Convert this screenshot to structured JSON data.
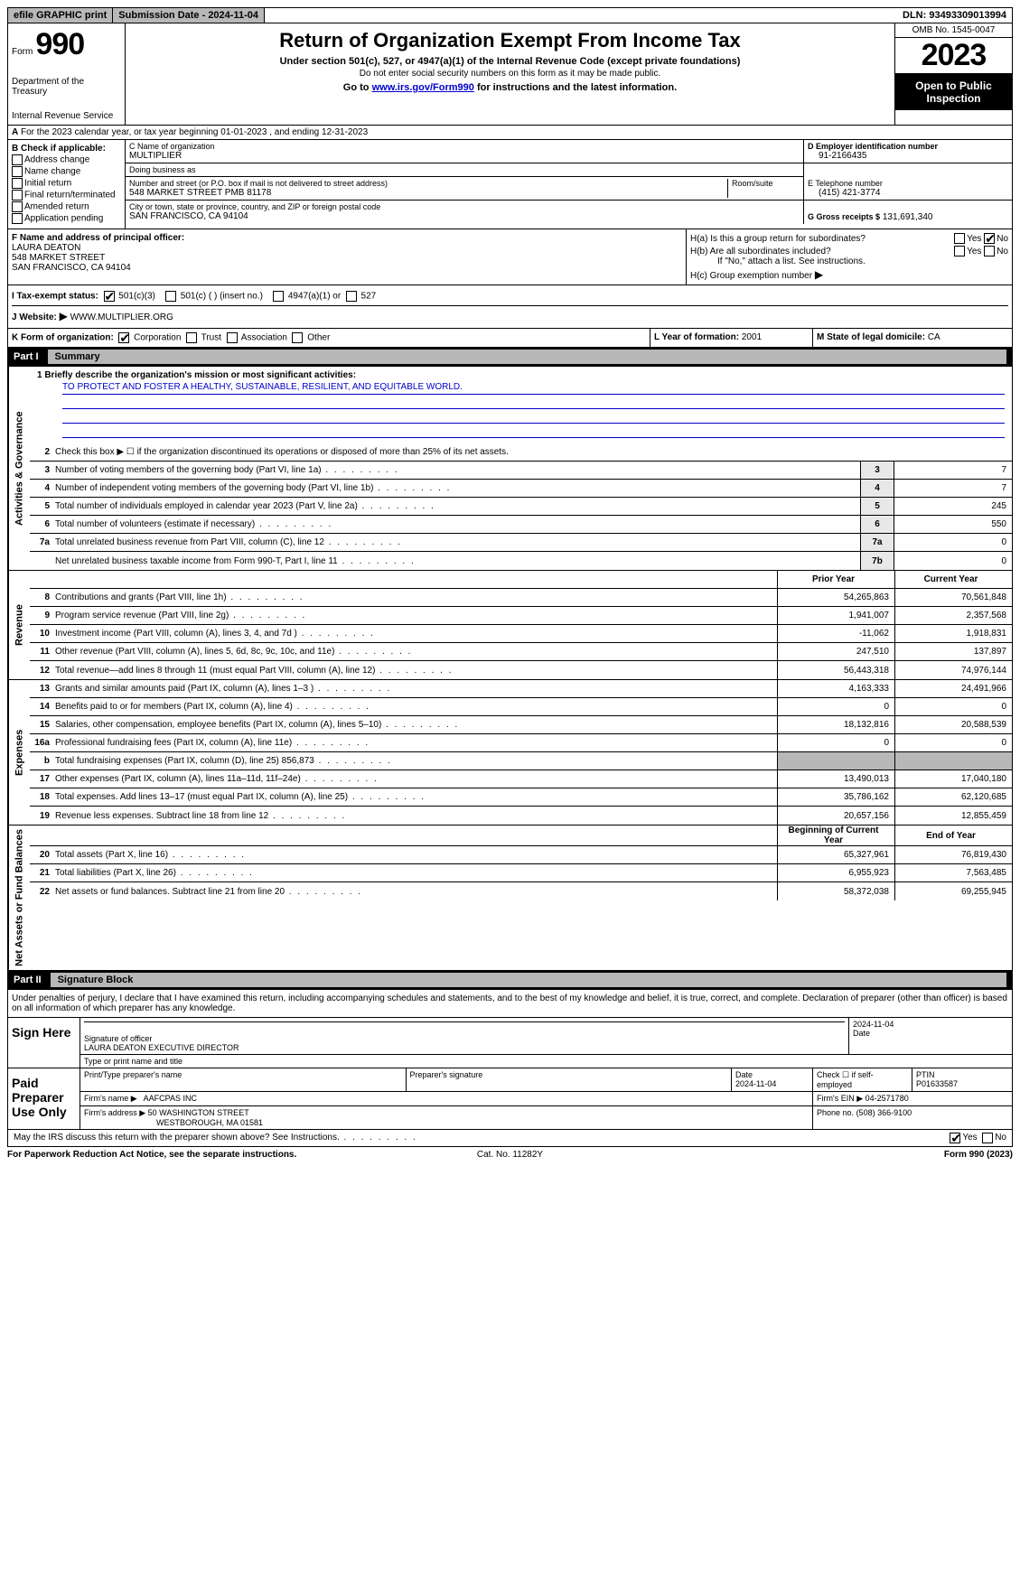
{
  "colors": {
    "black": "#000000",
    "white": "#ffffff",
    "gray_header": "#b8b8b8",
    "gray_shade": "#e8e8e8",
    "link_blue": "#0000cc"
  },
  "topbar": {
    "efile": "efile GRAPHIC print",
    "submission": "Submission Date - 2024-11-04",
    "dln": "DLN: 93493309013994"
  },
  "header": {
    "form_word": "Form",
    "form_num": "990",
    "title": "Return of Organization Exempt From Income Tax",
    "subtitle": "Under section 501(c), 527, or 4947(a)(1) of the Internal Revenue Code (except private foundations)",
    "no_ssn": "Do not enter social security numbers on this form as it may be made public.",
    "goto_pre": "Go to ",
    "goto_link": "www.irs.gov/Form990",
    "goto_post": " for instructions and the latest information.",
    "dept": "Department of the Treasury",
    "irs": "Internal Revenue Service",
    "omb": "OMB No. 1545-0047",
    "year": "2023",
    "open_public": "Open to Public Inspection"
  },
  "section_a": {
    "label_a": "A",
    "text": "For the 2023 calendar year, or tax year beginning 01-01-2023    , and ending 12-31-2023"
  },
  "col_b": {
    "header": "B Check if applicable:",
    "items": [
      "Address change",
      "Name change",
      "Initial return",
      "Final return/terminated",
      "Amended return",
      "Application pending"
    ]
  },
  "col_c": {
    "name_label": "C Name of organization",
    "name": "MULTIPLIER",
    "dba_label": "Doing business as",
    "dba": "",
    "street_label": "Number and street (or P.O. box if mail is not delivered to street address)",
    "street": "548 MARKET STREET PMB 81178",
    "room_label": "Room/suite",
    "room": "",
    "city_label": "City or town, state or province, country, and ZIP or foreign postal code",
    "city": "SAN FRANCISCO, CA  94104"
  },
  "col_d": {
    "ein_label": "D Employer identification number",
    "ein": "91-2166435",
    "phone_label": "E Telephone number",
    "phone": "(415) 421-3774",
    "gross_label": "G Gross receipts $",
    "gross": "131,691,340"
  },
  "row_f": {
    "label": "F  Name and address of principal officer:",
    "name": "LAURA DEATON",
    "street": "548 MARKET STREET",
    "city": "SAN FRANCISCO, CA  94104"
  },
  "row_h": {
    "ha_label": "H(a)  Is this a group return for subordinates?",
    "ha_yes": "Yes",
    "ha_no": "No",
    "hb_label": "H(b)  Are all subordinates included?",
    "hb_yes": "Yes",
    "hb_no": "No",
    "hb_note": "If \"No,\" attach a list. See instructions.",
    "hc_label": "H(c)  Group exemption number",
    "hc_arrow": "▶"
  },
  "row_i": {
    "label": "I    Tax-exempt status:",
    "c3": "501(c)(3)",
    "c_other": "501(c) (  ) (insert no.)",
    "c4947": "4947(a)(1) or",
    "c527": "527"
  },
  "row_j": {
    "label": "J    Website:",
    "arrow": "▶",
    "url": "WWW.MULTIPLIER.ORG"
  },
  "row_k": {
    "label": "K Form of organization:",
    "corp": "Corporation",
    "trust": "Trust",
    "assoc": "Association",
    "other": "Other"
  },
  "row_l": {
    "label": "L Year of formation:",
    "val": "2001"
  },
  "row_m": {
    "label": "M State of legal domicile:",
    "val": "CA"
  },
  "part1": {
    "tag": "Part I",
    "title": "Summary"
  },
  "summary": {
    "mission_prompt": "1   Briefly describe the organization's mission or most significant activities:",
    "mission": "TO PROTECT AND FOSTER A HEALTHY, SUSTAINABLE, RESILIENT, AND EQUITABLE WORLD.",
    "line2": "Check this box ▶ ☐ if the organization discontinued its operations or disposed of more than 25% of its net assets.",
    "gov": [
      {
        "n": "3",
        "label": "Number of voting members of the governing body (Part VI, line 1a)",
        "key": "3",
        "v": "7"
      },
      {
        "n": "4",
        "label": "Number of independent voting members of the governing body (Part VI, line 1b)",
        "key": "4",
        "v": "7"
      },
      {
        "n": "5",
        "label": "Total number of individuals employed in calendar year 2023 (Part V, line 2a)",
        "key": "5",
        "v": "245"
      },
      {
        "n": "6",
        "label": "Total number of volunteers (estimate if necessary)",
        "key": "6",
        "v": "550"
      },
      {
        "n": "7a",
        "label": "Total unrelated business revenue from Part VIII, column (C), line 12",
        "key": "7a",
        "v": "0"
      },
      {
        "n": "",
        "label": "Net unrelated business taxable income from Form 990-T, Part I, line 11",
        "key": "7b",
        "v": "0"
      }
    ],
    "two_col_header": {
      "prior": "Prior Year",
      "current": "Current Year",
      "boy": "Beginning of Current Year",
      "eoy": "End of Year"
    },
    "revenue": [
      {
        "n": "8",
        "label": "Contributions and grants (Part VIII, line 1h)",
        "p": "54,265,863",
        "c": "70,561,848"
      },
      {
        "n": "9",
        "label": "Program service revenue (Part VIII, line 2g)",
        "p": "1,941,007",
        "c": "2,357,568"
      },
      {
        "n": "10",
        "label": "Investment income (Part VIII, column (A), lines 3, 4, and 7d )",
        "p": "-11,062",
        "c": "1,918,831"
      },
      {
        "n": "11",
        "label": "Other revenue (Part VIII, column (A), lines 5, 6d, 8c, 9c, 10c, and 11e)",
        "p": "247,510",
        "c": "137,897"
      },
      {
        "n": "12",
        "label": "Total revenue—add lines 8 through 11 (must equal Part VIII, column (A), line 12)",
        "p": "56,443,318",
        "c": "74,976,144"
      }
    ],
    "expenses": [
      {
        "n": "13",
        "label": "Grants and similar amounts paid (Part IX, column (A), lines 1–3 )",
        "p": "4,163,333",
        "c": "24,491,966"
      },
      {
        "n": "14",
        "label": "Benefits paid to or for members (Part IX, column (A), line 4)",
        "p": "0",
        "c": "0"
      },
      {
        "n": "15",
        "label": "Salaries, other compensation, employee benefits (Part IX, column (A), lines 5–10)",
        "p": "18,132,816",
        "c": "20,588,539"
      },
      {
        "n": "16a",
        "label": "Professional fundraising fees (Part IX, column (A), line 11e)",
        "p": "0",
        "c": "0"
      },
      {
        "n": "b",
        "label": "Total fundraising expenses (Part IX, column (D), line 25) 856,873",
        "p": "",
        "c": "",
        "shade": true
      },
      {
        "n": "17",
        "label": "Other expenses (Part IX, column (A), lines 11a–11d, 11f–24e)",
        "p": "13,490,013",
        "c": "17,040,180"
      },
      {
        "n": "18",
        "label": "Total expenses. Add lines 13–17 (must equal Part IX, column (A), line 25)",
        "p": "35,786,162",
        "c": "62,120,685"
      },
      {
        "n": "19",
        "label": "Revenue less expenses. Subtract line 18 from line 12",
        "p": "20,657,156",
        "c": "12,855,459"
      }
    ],
    "netassets": [
      {
        "n": "20",
        "label": "Total assets (Part X, line 16)",
        "p": "65,327,961",
        "c": "76,819,430"
      },
      {
        "n": "21",
        "label": "Total liabilities (Part X, line 26)",
        "p": "6,955,923",
        "c": "7,563,485"
      },
      {
        "n": "22",
        "label": "Net assets or fund balances. Subtract line 21 from line 20",
        "p": "58,372,038",
        "c": "69,255,945"
      }
    ],
    "vtabs": {
      "gov": "Activities & Governance",
      "rev": "Revenue",
      "exp": "Expenses",
      "net": "Net Assets or Fund Balances"
    }
  },
  "part2": {
    "tag": "Part II",
    "title": "Signature Block"
  },
  "sig": {
    "intro": "Under penalties of perjury, I declare that I have examined this return, including accompanying schedules and statements, and to the best of my knowledge and belief, it is true, correct, and complete. Declaration of preparer (other than officer) is based on all information of which preparer has any knowledge.",
    "sign_here": "Sign Here",
    "sig_officer_label": "Signature of officer",
    "sig_date": "2024-11-04",
    "date_label": "Date",
    "officer_name": "LAURA DEATON  EXECUTIVE DIRECTOR",
    "type_label": "Type or print name and title",
    "paid": "Paid Preparer Use Only",
    "prep_name_label": "Print/Type preparer's name",
    "prep_sig_label": "Preparer's signature",
    "prep_date_label": "Date",
    "prep_date": "2024-11-04",
    "selfemp": "Check ☐ if self-employed",
    "ptin_label": "PTIN",
    "ptin": "P01633587",
    "firm_name_label": "Firm's name    ▶",
    "firm_name": "AAFCPAS INC",
    "firm_ein_label": "Firm's EIN ▶",
    "firm_ein": "04-2571780",
    "firm_addr_label": "Firm's address ▶",
    "firm_addr1": "50 WASHINGTON STREET",
    "firm_addr2": "WESTBOROUGH, MA  01581",
    "firm_phone_label": "Phone no.",
    "firm_phone": "(508) 366-9100"
  },
  "footer": {
    "discuss": "May the IRS discuss this return with the preparer shown above? See Instructions.",
    "yes": "Yes",
    "no": "No",
    "paperwork": "For Paperwork Reduction Act Notice, see the separate instructions.",
    "cat": "Cat. No. 11282Y",
    "form": "Form 990 (2023)"
  }
}
